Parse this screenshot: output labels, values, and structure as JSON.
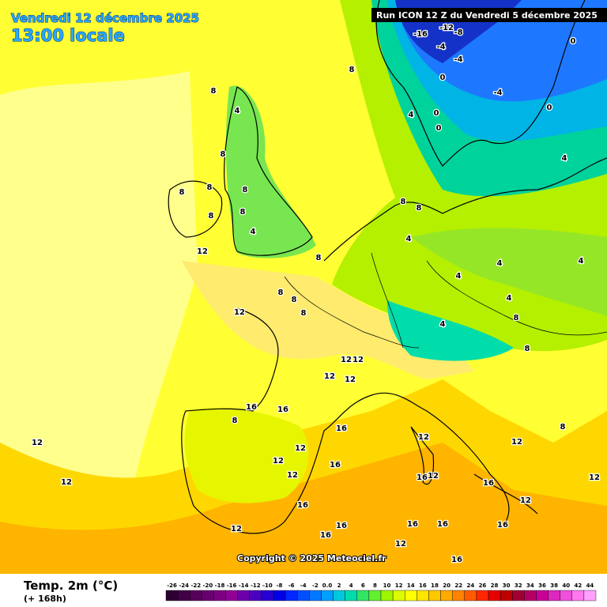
{
  "header": {
    "valid_date": "Vendredi 12 décembre 2025",
    "local_time": "13:00 locale",
    "run": "Run ICON 12 Z du Vendredi 5 décembre 2025"
  },
  "footer": {
    "variable": "Temp. 2m (°C)",
    "lead": "(+ 168h)",
    "copyright": "Copyright © 2025 Meteociel.fr"
  },
  "colorbar": {
    "ticks": [
      -26,
      -24,
      -22,
      -20,
      -18,
      -16,
      -14,
      -12,
      -10,
      -8,
      -6,
      -4,
      -2,
      {
        "value": 0,
        "label": "0.0"
      },
      2,
      4,
      6,
      8,
      10,
      12,
      14,
      16,
      18,
      20,
      22,
      24,
      26,
      28,
      30,
      32,
      34,
      36,
      38,
      40,
      42,
      44
    ],
    "colors": [
      "#2d0032",
      "#410046",
      "#55005a",
      "#69006e",
      "#7d0082",
      "#910096",
      "#6e00aa",
      "#4b00be",
      "#2800d2",
      "#0000e6",
      "#0028ff",
      "#0050ff",
      "#0078ff",
      "#00a0ff",
      "#00c8dc",
      "#00dcaa",
      "#32e664",
      "#64f032",
      "#a0f500",
      "#dcfa00",
      "#ffff00",
      "#ffe600",
      "#ffc800",
      "#ffaa00",
      "#ff8200",
      "#ff5a00",
      "#ff2800",
      "#e60000",
      "#be0000",
      "#a00032",
      "#b40064",
      "#c80096",
      "#dc28be",
      "#f050dc",
      "#ff78f0",
      "#ffa0ff"
    ]
  },
  "map_labels": [
    8,
    4,
    8,
    8,
    8,
    8,
    8,
    8,
    4,
    12,
    8,
    8,
    8,
    12,
    8,
    8,
    4,
    4,
    8,
    8,
    4,
    4,
    4,
    4,
    12,
    12,
    12,
    12,
    16,
    16,
    16,
    8,
    12,
    12,
    12,
    16,
    16,
    12,
    16,
    16,
    16,
    12,
    16,
    12,
    16,
    12,
    12,
    16,
    12,
    12,
    -16,
    -12,
    -8,
    -4,
    -4,
    0,
    -4,
    0,
    0,
    0,
    0,
    4,
    4,
    8,
    8,
    8,
    12,
    16,
    12,
    16
  ]
}
